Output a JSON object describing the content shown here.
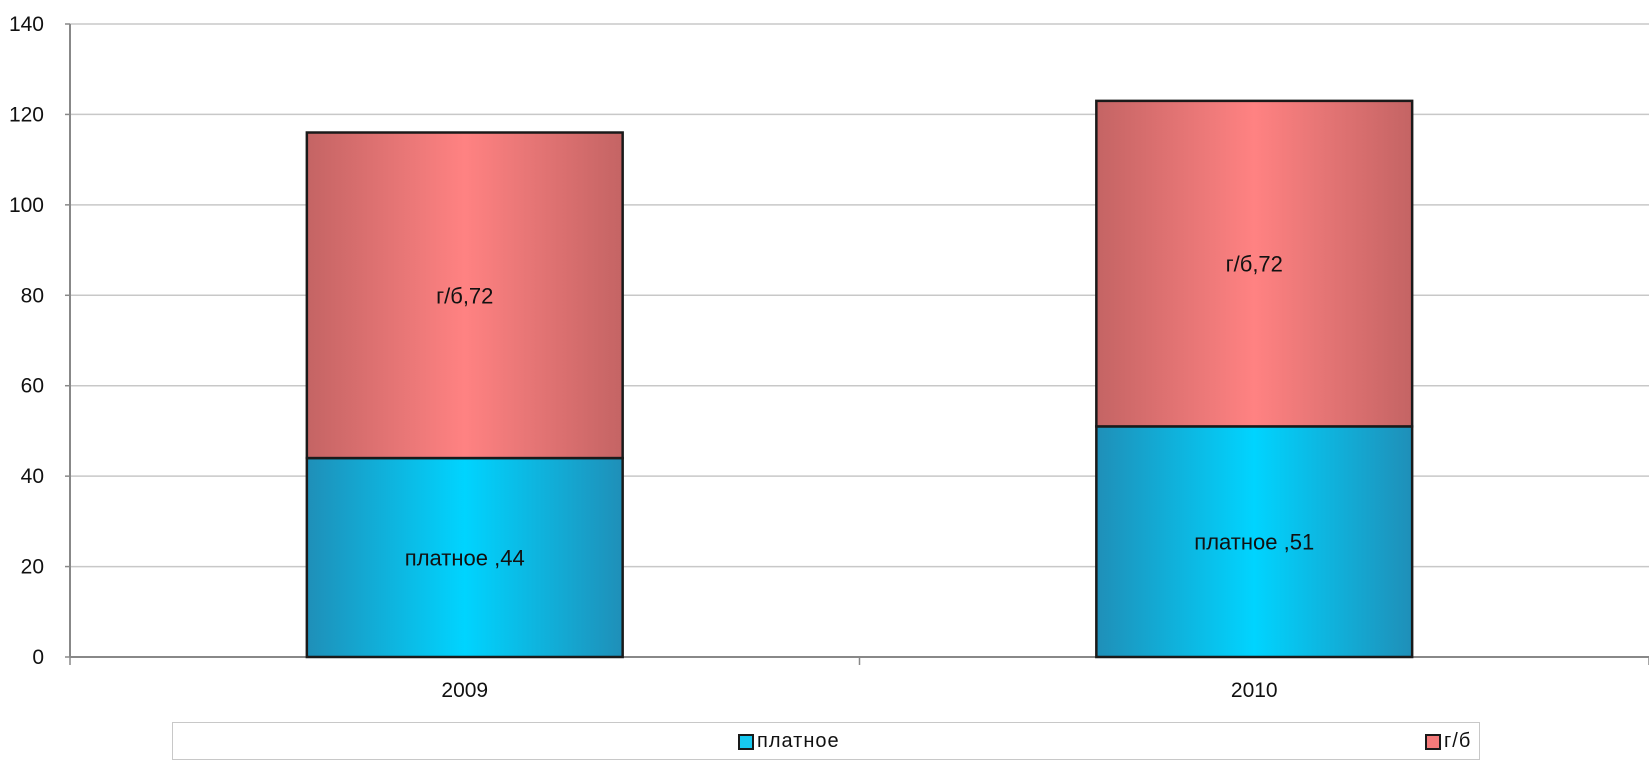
{
  "chart_data": {
    "type": "bar",
    "stacked": true,
    "categories": [
      "2009",
      "2010"
    ],
    "series": [
      {
        "name": "платное",
        "values": [
          44,
          51
        ],
        "color": "#17c9f0",
        "labels": [
          "платное ,44",
          "платное ,51"
        ]
      },
      {
        "name": "г/б",
        "values": [
          72,
          72
        ],
        "color": "#f47a7a",
        "labels": [
          "г/б,72",
          "г/б,72"
        ]
      }
    ],
    "ylim": [
      0,
      140
    ],
    "yticks": [
      "0",
      "20",
      "40",
      "60",
      "80",
      "100",
      "120",
      "140"
    ],
    "grid": true,
    "legend_position": "bottom"
  },
  "legend": {
    "items": [
      {
        "label": "платное",
        "color": "#17c9f0"
      },
      {
        "label": "г/б",
        "color": "#f47a7a"
      }
    ]
  }
}
